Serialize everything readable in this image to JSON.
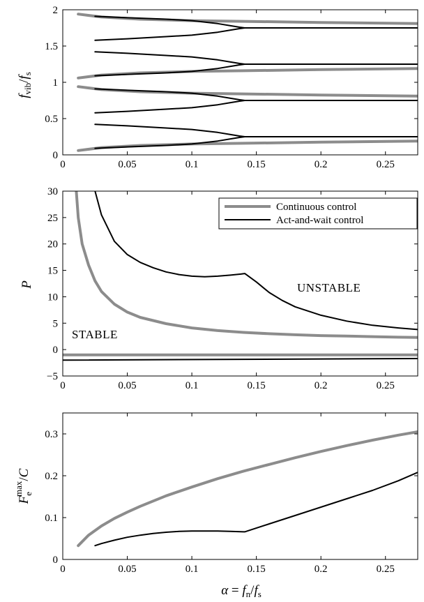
{
  "chart_data": [
    {
      "type": "line",
      "ylabel_parts": {
        "main": "f",
        "sub1": "vib",
        "slash": "/",
        "main2": "f",
        "sub2": "s"
      },
      "xlim": [
        0,
        0.275
      ],
      "ylim": [
        0,
        2
      ],
      "xticks": [
        0,
        0.05,
        0.1,
        0.15,
        0.2,
        0.25
      ],
      "xtick_labels": [
        "0",
        "0.05",
        "0.1",
        "0.15",
        "0.2",
        "0.25"
      ],
      "yticks": [
        0,
        0.5,
        1,
        1.5,
        2
      ],
      "ytick_labels": [
        "0",
        "0.5",
        "1",
        "1.5",
        "2"
      ],
      "grid": false,
      "series": [
        {
          "style": "continuous",
          "color": "#8c8c8c",
          "x": [
            0.012,
            0.03,
            0.06,
            0.1,
            0.14,
            0.2,
            0.275
          ],
          "y": [
            0.06,
            0.1,
            0.13,
            0.15,
            0.16,
            0.175,
            0.19
          ]
        },
        {
          "style": "continuous",
          "color": "#8c8c8c",
          "x": [
            0.012,
            0.03,
            0.06,
            0.1,
            0.14,
            0.2,
            0.275
          ],
          "y": [
            0.94,
            0.9,
            0.87,
            0.85,
            0.84,
            0.825,
            0.81
          ]
        },
        {
          "style": "continuous",
          "color": "#8c8c8c",
          "x": [
            0.012,
            0.03,
            0.06,
            0.1,
            0.14,
            0.2,
            0.275
          ],
          "y": [
            1.06,
            1.1,
            1.13,
            1.15,
            1.16,
            1.175,
            1.19
          ]
        },
        {
          "style": "continuous",
          "color": "#8c8c8c",
          "x": [
            0.012,
            0.03,
            0.06,
            0.1,
            0.14,
            0.2,
            0.275
          ],
          "y": [
            1.94,
            1.9,
            1.87,
            1.85,
            1.84,
            1.825,
            1.81
          ]
        },
        {
          "style": "act-and-wait",
          "color": "#000000",
          "x": [
            0.025,
            0.05,
            0.08,
            0.1,
            0.12,
            0.13,
            0.137,
            0.141,
            0.15,
            0.2,
            0.275
          ],
          "y": [
            0.09,
            0.11,
            0.13,
            0.15,
            0.19,
            0.22,
            0.24,
            0.25,
            0.25,
            0.25,
            0.25
          ]
        },
        {
          "style": "act-and-wait",
          "color": "#000000",
          "x": [
            0.025,
            0.05,
            0.08,
            0.1,
            0.12,
            0.13,
            0.137,
            0.141
          ],
          "y": [
            0.42,
            0.4,
            0.37,
            0.35,
            0.31,
            0.28,
            0.26,
            0.25
          ]
        },
        {
          "style": "act-and-wait",
          "color": "#000000",
          "x": [
            0.025,
            0.05,
            0.08,
            0.1,
            0.12,
            0.13,
            0.137,
            0.141
          ],
          "y": [
            0.58,
            0.6,
            0.63,
            0.65,
            0.69,
            0.72,
            0.74,
            0.75
          ]
        },
        {
          "style": "act-and-wait",
          "color": "#000000",
          "x": [
            0.025,
            0.05,
            0.08,
            0.1,
            0.12,
            0.13,
            0.137,
            0.141,
            0.15,
            0.2,
            0.275
          ],
          "y": [
            0.91,
            0.89,
            0.87,
            0.85,
            0.81,
            0.78,
            0.76,
            0.75,
            0.75,
            0.75,
            0.75
          ]
        },
        {
          "style": "act-and-wait",
          "color": "#000000",
          "x": [
            0.025,
            0.05,
            0.08,
            0.1,
            0.12,
            0.13,
            0.137,
            0.141,
            0.15,
            0.2,
            0.275
          ],
          "y": [
            1.09,
            1.11,
            1.13,
            1.15,
            1.19,
            1.22,
            1.24,
            1.25,
            1.25,
            1.25,
            1.25
          ]
        },
        {
          "style": "act-and-wait",
          "color": "#000000",
          "x": [
            0.025,
            0.05,
            0.08,
            0.1,
            0.12,
            0.13,
            0.137,
            0.141
          ],
          "y": [
            1.42,
            1.4,
            1.37,
            1.35,
            1.31,
            1.28,
            1.26,
            1.25
          ]
        },
        {
          "style": "act-and-wait",
          "color": "#000000",
          "x": [
            0.025,
            0.05,
            0.08,
            0.1,
            0.12,
            0.13,
            0.137,
            0.141
          ],
          "y": [
            1.58,
            1.6,
            1.63,
            1.65,
            1.69,
            1.72,
            1.74,
            1.75
          ]
        },
        {
          "style": "act-and-wait",
          "color": "#000000",
          "x": [
            0.025,
            0.05,
            0.08,
            0.1,
            0.12,
            0.13,
            0.137,
            0.141,
            0.15,
            0.2,
            0.275
          ],
          "y": [
            1.91,
            1.89,
            1.87,
            1.85,
            1.81,
            1.78,
            1.76,
            1.75,
            1.75,
            1.75,
            1.75
          ]
        }
      ]
    },
    {
      "type": "line",
      "ylabel": "P",
      "xlim": [
        0,
        0.275
      ],
      "ylim": [
        -5,
        30
      ],
      "xticks": [
        0,
        0.05,
        0.1,
        0.15,
        0.2,
        0.25
      ],
      "xtick_labels": [
        "0",
        "0.05",
        "0.1",
        "0.15",
        "0.2",
        "0.25"
      ],
      "yticks": [
        -5,
        0,
        5,
        10,
        15,
        20,
        25,
        30
      ],
      "ytick_labels": [
        "−5",
        "0",
        "5",
        "10",
        "15",
        "20",
        "25",
        "30"
      ],
      "grid": false,
      "legend": {
        "location": "top-right",
        "entries": [
          "Continuous control",
          "Act-and-wait control"
        ]
      },
      "annotations": {
        "unstable": "UNSTABLE",
        "stable": "STABLE"
      },
      "series": [
        {
          "name": "Continuous control",
          "color": "#8c8c8c",
          "x": [
            0.0105,
            0.012,
            0.015,
            0.02,
            0.025,
            0.03,
            0.04,
            0.05,
            0.06,
            0.08,
            0.1,
            0.12,
            0.14,
            0.16,
            0.18,
            0.2,
            0.22,
            0.24,
            0.26,
            0.275
          ],
          "y": [
            30,
            25,
            20,
            16,
            13,
            11,
            8.6,
            7.1,
            6.1,
            4.9,
            4.1,
            3.6,
            3.25,
            3.0,
            2.8,
            2.65,
            2.55,
            2.45,
            2.35,
            2.3
          ]
        },
        {
          "name": "Continuous control",
          "color": "#8c8c8c",
          "x": [
            0,
            0.275
          ],
          "y": [
            -1,
            -1
          ]
        },
        {
          "name": "Act-and-wait control",
          "color": "#000000",
          "x": [
            0.025,
            0.03,
            0.04,
            0.05,
            0.06,
            0.07,
            0.08,
            0.09,
            0.1,
            0.11,
            0.12,
            0.13,
            0.138,
            0.141,
            0.15,
            0.16,
            0.17,
            0.18,
            0.2,
            0.22,
            0.24,
            0.26,
            0.275
          ],
          "y": [
            30,
            25.5,
            20.5,
            18,
            16.5,
            15.5,
            14.7,
            14.2,
            13.9,
            13.8,
            13.9,
            14.1,
            14.3,
            14.4,
            12.8,
            10.8,
            9.3,
            8.1,
            6.5,
            5.4,
            4.6,
            4.1,
            3.8
          ]
        },
        {
          "name": "Act-and-wait control",
          "color": "#000000",
          "x": [
            0,
            0.275
          ],
          "y": [
            -2,
            -1.7
          ]
        }
      ]
    },
    {
      "type": "line",
      "ylabel_parts": {
        "main": "F",
        "sub": "e",
        "sup": "max",
        "slash": "/",
        "main2": "C"
      },
      "xlabel_parts": {
        "alpha": "α",
        "eq": " = ",
        "main": "f",
        "sub1": "n",
        "slash": "/",
        "main2": "f",
        "sub2": "s"
      },
      "xlim": [
        0,
        0.275
      ],
      "ylim": [
        0,
        0.35
      ],
      "xticks": [
        0,
        0.05,
        0.1,
        0.15,
        0.2,
        0.25
      ],
      "xtick_labels": [
        "0",
        "0.05",
        "0.1",
        "0.15",
        "0.2",
        "0.25"
      ],
      "yticks": [
        0,
        0.1,
        0.2,
        0.3
      ],
      "ytick_labels": [
        "0",
        "0.1",
        "0.2",
        "0.3"
      ],
      "grid": false,
      "series": [
        {
          "name": "Continuous control",
          "color": "#8c8c8c",
          "x": [
            0.012,
            0.02,
            0.03,
            0.04,
            0.05,
            0.06,
            0.08,
            0.1,
            0.12,
            0.14,
            0.16,
            0.18,
            0.2,
            0.22,
            0.24,
            0.26,
            0.275
          ],
          "y": [
            0.033,
            0.058,
            0.08,
            0.098,
            0.113,
            0.127,
            0.152,
            0.173,
            0.193,
            0.211,
            0.227,
            0.243,
            0.258,
            0.272,
            0.285,
            0.297,
            0.305
          ]
        },
        {
          "name": "Act-and-wait control",
          "color": "#000000",
          "x": [
            0.025,
            0.03,
            0.04,
            0.05,
            0.06,
            0.07,
            0.08,
            0.09,
            0.1,
            0.11,
            0.12,
            0.13,
            0.14,
            0.141,
            0.16,
            0.18,
            0.2,
            0.22,
            0.24,
            0.26,
            0.275
          ],
          "y": [
            0.033,
            0.038,
            0.046,
            0.053,
            0.058,
            0.062,
            0.065,
            0.067,
            0.068,
            0.068,
            0.068,
            0.067,
            0.066,
            0.066,
            0.085,
            0.105,
            0.125,
            0.145,
            0.165,
            0.188,
            0.208
          ]
        }
      ]
    }
  ]
}
